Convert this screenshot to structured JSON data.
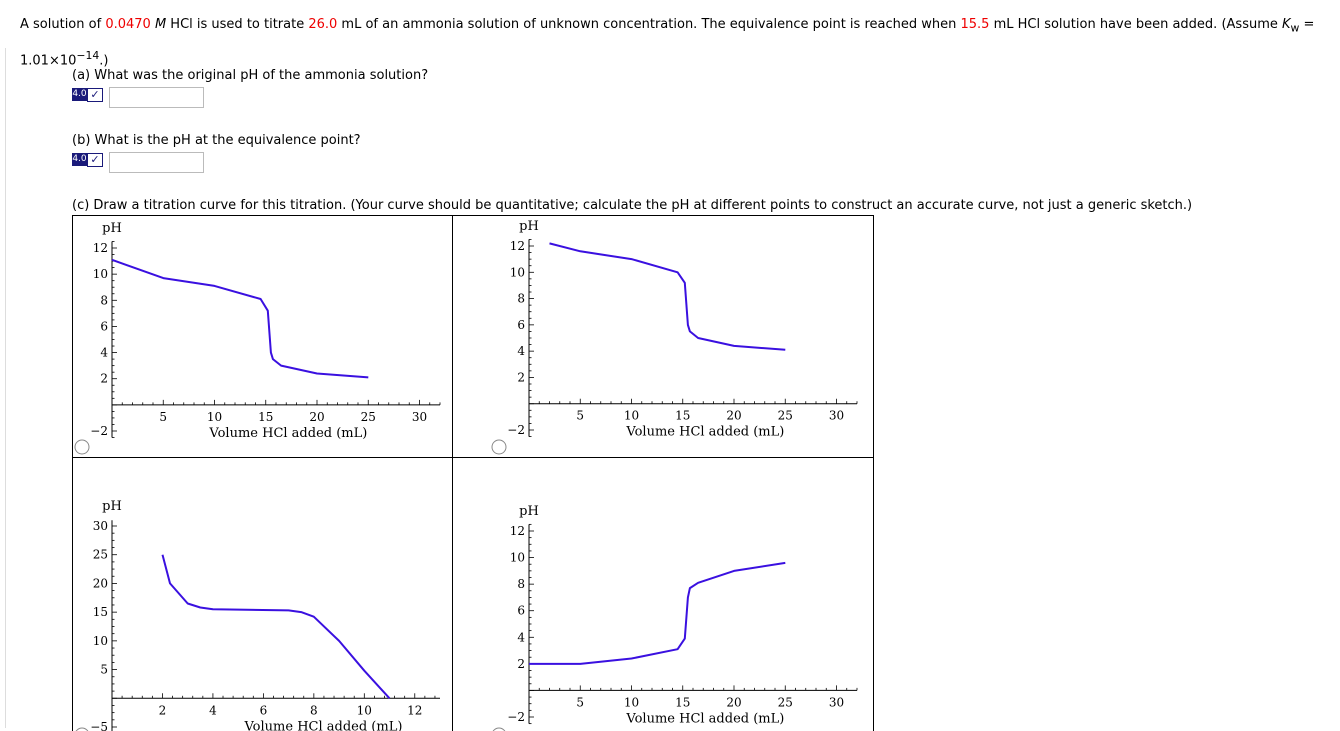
{
  "question": {
    "t1": "A solution of ",
    "hcl_conc": "0.0470",
    "t2": " ",
    "t2_italic": "M",
    "t3": " HCl is used to titrate ",
    "nh3_vol": "26.0",
    "t4": " mL of an ammonia solution of unknown concentration. The equivalence point is reached when ",
    "eq_vol": "15.5",
    "t5": " mL HCl solution have been added. (Assume ",
    "kw_k": "K",
    "kw_w": "w",
    "t6": " =",
    "kw_value": "1.01×10",
    "kw_exp": "−14",
    "t7": ".)"
  },
  "part_a": {
    "text": "(a) What was the original pH of the ammonia solution?",
    "badge": "4.0",
    "value": ""
  },
  "part_b": {
    "text": "(b) What is the pH at the equivalence point?",
    "badge": "4.0",
    "value": ""
  },
  "part_c": {
    "text": "(c) Draw a titration curve for this titration. (Your curve should be quantitative; calculate the pH at different points to construct an accurate curve, not just a generic sketch.)"
  },
  "chart_data": [
    {
      "type": "line",
      "option": "1",
      "ylabel": "pH",
      "xlabel": "Volume HCl added (mL)",
      "xlim": [
        0,
        32
      ],
      "ylim": [
        -2.5,
        12.5
      ],
      "xticks": [
        5,
        10,
        15,
        20,
        25,
        30
      ],
      "yticks": [
        12,
        10,
        8,
        6,
        4,
        2,
        -2
      ],
      "x": [
        0,
        5,
        10,
        14.5,
        15.2,
        15.5,
        15.7,
        16.5,
        20,
        25
      ],
      "y": [
        11.1,
        9.7,
        9.1,
        8.1,
        7.2,
        4.0,
        3.5,
        3.0,
        2.4,
        2.1
      ]
    },
    {
      "type": "line",
      "option": "2",
      "ylabel": "pH",
      "xlabel": "Volume HCl added (mL)",
      "xlim": [
        0,
        32
      ],
      "ylim": [
        -2.5,
        12.5
      ],
      "xticks": [
        5,
        10,
        15,
        20,
        25,
        30
      ],
      "yticks": [
        12,
        10,
        8,
        6,
        4,
        2,
        -2
      ],
      "x": [
        2,
        5,
        10,
        14.5,
        15.2,
        15.5,
        15.7,
        16.5,
        20,
        25
      ],
      "y": [
        12.2,
        11.6,
        11.0,
        10.0,
        9.2,
        6.0,
        5.5,
        5.0,
        4.4,
        4.1
      ]
    },
    {
      "type": "line",
      "option": "3",
      "ylabel": "pH",
      "xlabel": "Volume HCl added (mL)",
      "xlim": [
        0,
        13
      ],
      "ylim": [
        -6,
        31
      ],
      "xticks": [
        2,
        4,
        6,
        8,
        10,
        12
      ],
      "yticks": [
        30,
        25,
        20,
        15,
        10,
        5,
        -5
      ],
      "x": [
        2,
        2.3,
        3,
        3.5,
        4,
        7,
        7.5,
        8,
        9,
        10,
        11
      ],
      "y": [
        25,
        20,
        16.5,
        15.8,
        15.5,
        15.3,
        15,
        14.2,
        10,
        4.8,
        0
      ]
    },
    {
      "type": "line",
      "option": "4",
      "ylabel": "pH",
      "xlabel": "Volume HCl added (mL)",
      "xlim": [
        0,
        32
      ],
      "ylim": [
        -2.5,
        12.5
      ],
      "xticks": [
        5,
        10,
        15,
        20,
        25,
        30
      ],
      "yticks": [
        12,
        10,
        8,
        6,
        4,
        2,
        -2
      ],
      "x": [
        0,
        5,
        10,
        14.5,
        15.2,
        15.5,
        15.7,
        16.5,
        20,
        25
      ],
      "y": [
        2.0,
        2.0,
        2.4,
        3.1,
        3.9,
        7.0,
        7.7,
        8.1,
        9.0,
        9.6
      ]
    }
  ]
}
